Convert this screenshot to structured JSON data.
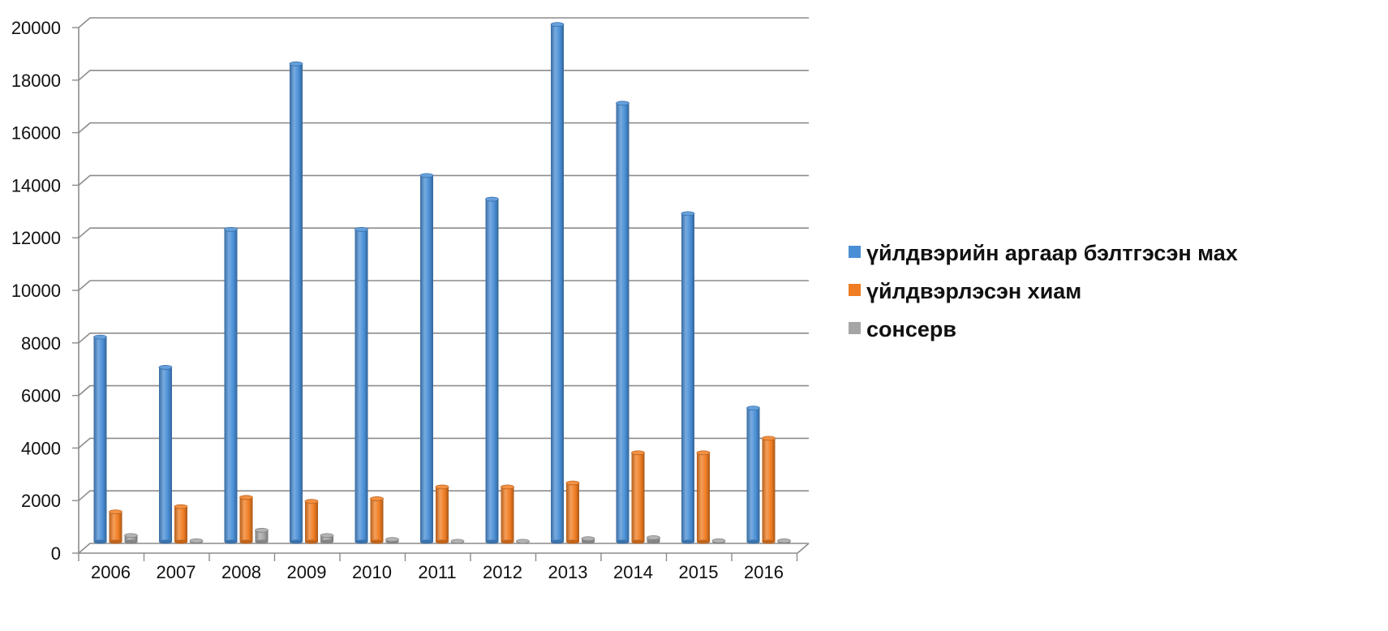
{
  "chart_data": {
    "type": "bar",
    "title": "",
    "xlabel": "",
    "ylabel": "",
    "categories": [
      "2006",
      "2007",
      "2008",
      "2009",
      "2010",
      "2011",
      "2012",
      "2013",
      "2014",
      "2015",
      "2016"
    ],
    "series": [
      {
        "name": "үйлдвэрийн аргаар бэлтгэсэн мах",
        "color": "#4a8fd6",
        "values": [
          7850,
          6700,
          11950,
          18250,
          11950,
          14000,
          13100,
          19750,
          16750,
          12550,
          5150
        ]
      },
      {
        "name": "үйлдвэрлэсэн хиам",
        "color": "#f07d23",
        "values": [
          1200,
          1400,
          1750,
          1600,
          1700,
          2150,
          2150,
          2300,
          3450,
          3450,
          4000
        ]
      },
      {
        "name": "сонсерв",
        "color": "#a5a5a5",
        "values": [
          300,
          100,
          500,
          300,
          150,
          80,
          80,
          180,
          220,
          100,
          100
        ]
      }
    ],
    "ylim": [
      0,
      20000
    ],
    "yticks": [
      0,
      2000,
      4000,
      6000,
      8000,
      10000,
      12000,
      14000,
      16000,
      18000,
      20000
    ],
    "grid": true,
    "legend_position": "right"
  }
}
